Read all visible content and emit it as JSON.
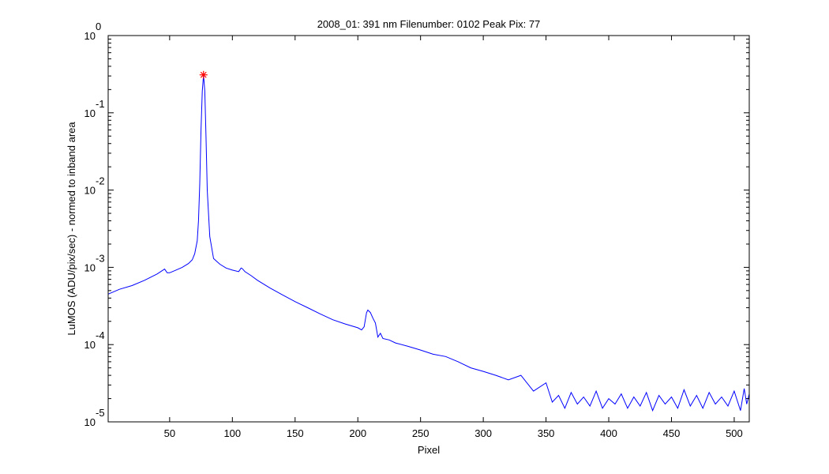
{
  "chart_data": {
    "type": "line",
    "title": "2008_01: 391 nm  Filenumber: 0102 Peak Pix: 77",
    "xlabel": "Pixel",
    "ylabel": "LuMOS (ADU/pix/sec) - normed to inband area",
    "xlim": [
      1,
      512
    ],
    "ylim": [
      1e-05,
      1
    ],
    "yscale": "log",
    "grid": false,
    "x_ticks": [
      50,
      100,
      150,
      200,
      250,
      300,
      350,
      400,
      450,
      500
    ],
    "y_ticks": [
      {
        "base": "10",
        "exp": "0",
        "value": 1
      },
      {
        "base": "10",
        "exp": "-1",
        "value": 0.1
      },
      {
        "base": "10",
        "exp": "-2",
        "value": 0.01
      },
      {
        "base": "10",
        "exp": "-3",
        "value": 0.001
      },
      {
        "base": "10",
        "exp": "-4",
        "value": 0.0001
      },
      {
        "base": "10",
        "exp": "-5",
        "value": 1e-05
      }
    ],
    "series": [
      {
        "color": "#0000ff",
        "x": [
          1,
          10,
          20,
          30,
          40,
          46,
          48,
          50,
          55,
          60,
          65,
          68,
          70,
          72,
          73,
          74,
          75,
          76,
          77,
          78,
          79,
          80,
          82,
          85,
          90,
          95,
          100,
          105,
          107,
          108,
          110,
          115,
          120,
          130,
          140,
          150,
          160,
          170,
          180,
          190,
          200,
          203,
          205,
          207,
          208,
          210,
          212,
          214,
          216,
          218,
          220,
          225,
          230,
          240,
          250,
          260,
          270,
          280,
          290,
          300,
          310,
          320,
          330,
          340,
          350,
          355,
          360,
          365,
          370,
          375,
          380,
          385,
          390,
          395,
          400,
          405,
          410,
          415,
          420,
          425,
          430,
          435,
          440,
          445,
          450,
          455,
          460,
          465,
          470,
          475,
          480,
          485,
          490,
          495,
          500,
          505,
          508,
          510,
          512
        ],
        "y": [
          0.00045,
          0.00052,
          0.00058,
          0.00068,
          0.00082,
          0.00095,
          0.00085,
          0.00085,
          0.00092,
          0.001,
          0.00112,
          0.00125,
          0.0015,
          0.0022,
          0.004,
          0.012,
          0.06,
          0.19,
          0.31,
          0.19,
          0.05,
          0.01,
          0.0025,
          0.0013,
          0.0011,
          0.00098,
          0.00092,
          0.00088,
          0.00098,
          0.00096,
          0.00088,
          0.00078,
          0.00068,
          0.00054,
          0.00044,
          0.00036,
          0.0003,
          0.00025,
          0.00021,
          0.000185,
          0.000165,
          0.000155,
          0.00017,
          0.00026,
          0.00028,
          0.00026,
          0.00022,
          0.00019,
          0.000125,
          0.00014,
          0.00012,
          0.000115,
          0.000105,
          9.5e-05,
          8.5e-05,
          7.5e-05,
          7e-05,
          6e-05,
          5e-05,
          4.5e-05,
          4e-05,
          3.5e-05,
          4e-05,
          2.5e-05,
          3.2e-05,
          1.8e-05,
          2.2e-05,
          1.5e-05,
          2.4e-05,
          1.7e-05,
          2.1e-05,
          1.6e-05,
          2.5e-05,
          1.5e-05,
          2e-05,
          1.7e-05,
          2.3e-05,
          1.5e-05,
          2.1e-05,
          1.6e-05,
          2.4e-05,
          1.4e-05,
          2.2e-05,
          1.7e-05,
          2.1e-05,
          1.5e-05,
          2.6e-05,
          1.6e-05,
          2.2e-05,
          1.5e-05,
          2.4e-05,
          1.7e-05,
          2.1e-05,
          1.6e-05,
          2.5e-05,
          1.4e-05,
          2.7e-05,
          1.7e-05,
          2.3e-05
        ]
      }
    ],
    "annotations": [
      {
        "type": "marker",
        "symbol": "asterisk",
        "x": 77,
        "y": 0.31,
        "color": "#ff0000"
      }
    ]
  }
}
